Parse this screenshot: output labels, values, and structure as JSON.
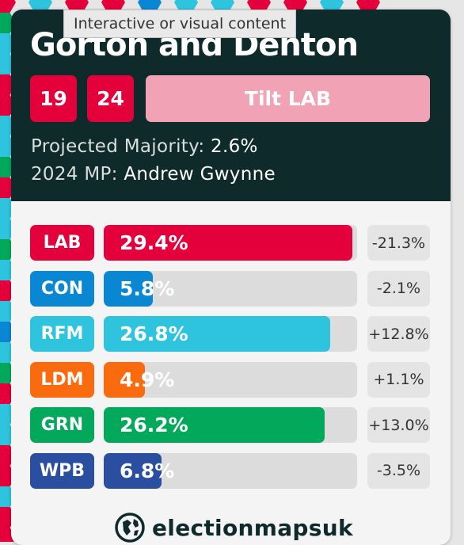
{
  "tooltip": "Interactive or visual content",
  "constituency": {
    "name": "Gorton and Denton",
    "badges": [
      "19",
      "24"
    ],
    "tilt_label": "Tilt LAB",
    "majority_label": "Projected Majority:",
    "majority_value": "2.6%",
    "mp_label": "2024 MP:",
    "mp_value": "Andrew Gwynne"
  },
  "results": [
    {
      "party": "LAB",
      "share": "29.4%",
      "share_value": 29.4,
      "change": "-21.3%",
      "color": "#e4003b"
    },
    {
      "party": "CON",
      "share": "5.8%",
      "share_value": 5.8,
      "change": "-2.1%",
      "color": "#0a87d2"
    },
    {
      "party": "RFM",
      "share": "26.8%",
      "share_value": 26.8,
      "change": "+12.8%",
      "color": "#2ec4de"
    },
    {
      "party": "LDM",
      "share": "4.9%",
      "share_value": 4.9,
      "change": "+1.1%",
      "color": "#fa6a0f"
    },
    {
      "party": "GRN",
      "share": "26.2%",
      "share_value": 26.2,
      "change": "+13.0%",
      "color": "#02a95b"
    },
    {
      "party": "WPB",
      "share": "6.8%",
      "share_value": 6.8,
      "change": "-3.5%",
      "color": "#2a4ea0"
    }
  ],
  "brand": {
    "name": "electionmapsuk",
    "icon": "globe-logo-icon"
  }
}
